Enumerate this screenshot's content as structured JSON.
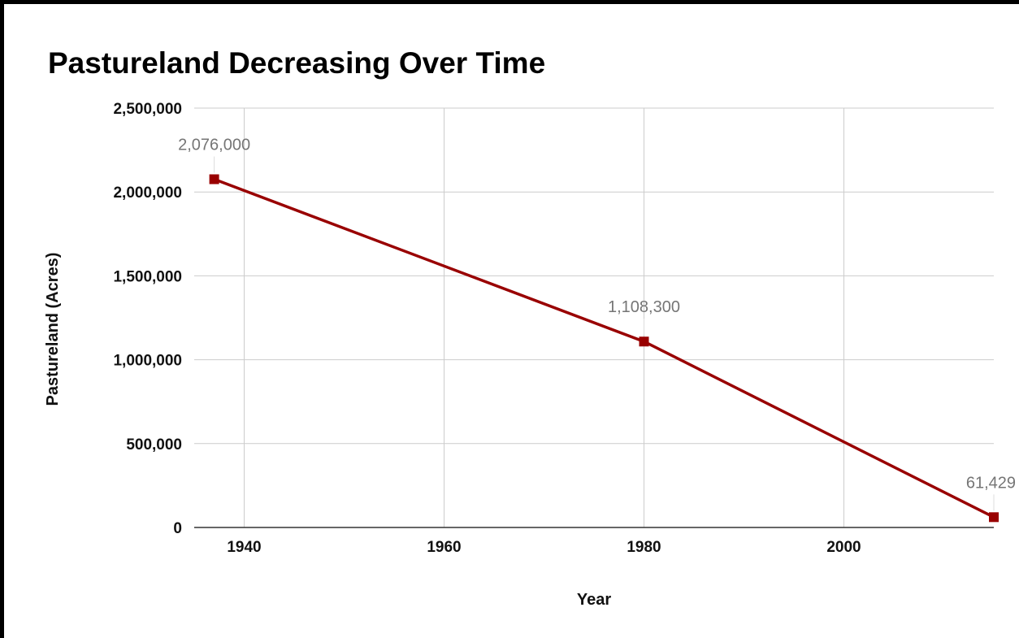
{
  "chart_data": {
    "type": "line",
    "title": "Pastureland Decreasing Over Time",
    "xlabel": "Year",
    "ylabel": "Pastureland (Acres)",
    "xlim": [
      1935,
      2015
    ],
    "ylim": [
      0,
      2500000
    ],
    "x_ticks": [
      1940,
      1960,
      1980,
      2000
    ],
    "x_tick_labels": [
      "1940",
      "1960",
      "1980",
      "2000"
    ],
    "y_ticks": [
      0,
      500000,
      1000000,
      1500000,
      2000000,
      2500000
    ],
    "y_tick_labels": [
      "0",
      "500,000",
      "1,000,000",
      "1,500,000",
      "2,000,000",
      "2,500,000"
    ],
    "grid": true,
    "legend": "none",
    "series": [
      {
        "color": "#990000",
        "marker": "square",
        "points": [
          {
            "x": 1937,
            "y": 2076000,
            "label": "2,076,000"
          },
          {
            "x": 1980,
            "y": 1108300,
            "label": "1,108,300"
          },
          {
            "x": 2015,
            "y": 61429,
            "label": "61,429"
          }
        ]
      }
    ]
  }
}
